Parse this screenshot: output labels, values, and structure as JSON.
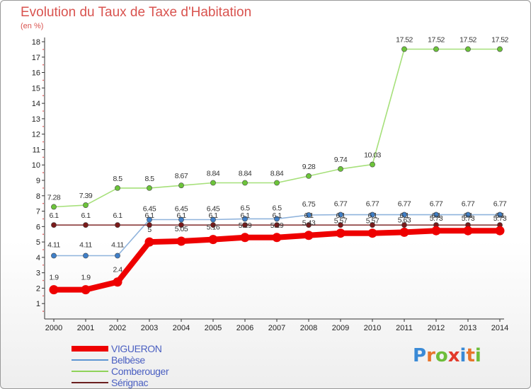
{
  "header": {
    "title": "Evolution du Taux de Taxe d'Habitation",
    "unit": "(en %)"
  },
  "logo": {
    "letters": [
      "P",
      "r",
      "o",
      "x",
      "i",
      "t",
      "i"
    ],
    "colors": [
      "#3a8ad6",
      "#e8742b",
      "#6dbd3a",
      "#e23a2b",
      "#3a8ad6",
      "#e8742b",
      "#6dbd3a"
    ]
  },
  "chart_data": {
    "type": "line",
    "title": "Evolution du Taux de Taxe d'Habitation",
    "ylabel": "(en %)",
    "xlabel": "",
    "x": [
      "2000",
      "2001",
      "2002",
      "2003",
      "2004",
      "2005",
      "2006",
      "2007",
      "2008",
      "2009",
      "2010",
      "2011",
      "2012",
      "2013",
      "2014"
    ],
    "ylim": [
      0,
      18
    ],
    "yticks": [
      "1",
      "2",
      "3",
      "4",
      "5",
      "6",
      "7",
      "8",
      "9",
      "10",
      "11",
      "12",
      "13",
      "14",
      "15",
      "16",
      "17",
      "18"
    ],
    "grid": false,
    "legend_position": "bottom-left",
    "series": [
      {
        "name": "VIGUERON",
        "color": "#ee0000",
        "marker_color": "#ee0000",
        "emphasis": true,
        "values": [
          1.9,
          1.9,
          2.4,
          5,
          5.05,
          5.16,
          5.29,
          5.29,
          5.43,
          5.57,
          5.57,
          5.63,
          5.73,
          5.73,
          5.73
        ],
        "labels": [
          "1.9",
          "1.9",
          "2.4",
          "5",
          "5.05",
          "5.16",
          "5.29",
          "5.29",
          "5.43",
          "5.57",
          "5.57",
          "5.63",
          "5.73",
          "5.73",
          "5.73"
        ]
      },
      {
        "name": "Belbèse",
        "color": "#8fb3dc",
        "marker_color": "#3f7fc8",
        "emphasis": false,
        "values": [
          4.11,
          4.11,
          4.11,
          6.45,
          6.45,
          6.45,
          6.5,
          6.5,
          6.75,
          6.77,
          6.77,
          6.77,
          6.77,
          6.77,
          6.77
        ],
        "labels": [
          "4.11",
          "4.11",
          "4.11",
          "6.45",
          "6.45",
          "6.45",
          "6.5",
          "6.5",
          "6.75",
          "6.77",
          "6.77",
          "6.77",
          "6.77",
          "6.77",
          "6.77"
        ]
      },
      {
        "name": "Comberouger",
        "color": "#a6e07a",
        "marker_color": "#6cc43a",
        "emphasis": false,
        "values": [
          7.28,
          7.39,
          8.5,
          8.5,
          8.67,
          8.84,
          8.84,
          8.84,
          9.28,
          9.74,
          10.03,
          17.52,
          17.52,
          17.52,
          17.52
        ],
        "labels": [
          "7.28",
          "7.39",
          "8.5",
          "8.5",
          "8.67",
          "8.84",
          "8.84",
          "8.84",
          "9.28",
          "9.74",
          "10.03",
          "17.52",
          "17.52",
          "17.52",
          "17.52"
        ]
      },
      {
        "name": "Sérignac",
        "color": "#8a3a3a",
        "marker_color": "#7a1a1a",
        "emphasis": false,
        "values": [
          6.1,
          6.1,
          6.1,
          6.1,
          6.1,
          6.1,
          6.1,
          6.1,
          6.1,
          6.1,
          6.1,
          6.1,
          6.1,
          6.1,
          6.1
        ],
        "labels": [
          "6.1",
          "6.1",
          "6.1",
          "6.1",
          "6.1",
          "6.1",
          "6.1",
          "6.1",
          "6.1",
          "6.1",
          "6.1",
          "6.1",
          "6.1",
          "6.1",
          "6.1"
        ]
      }
    ]
  }
}
